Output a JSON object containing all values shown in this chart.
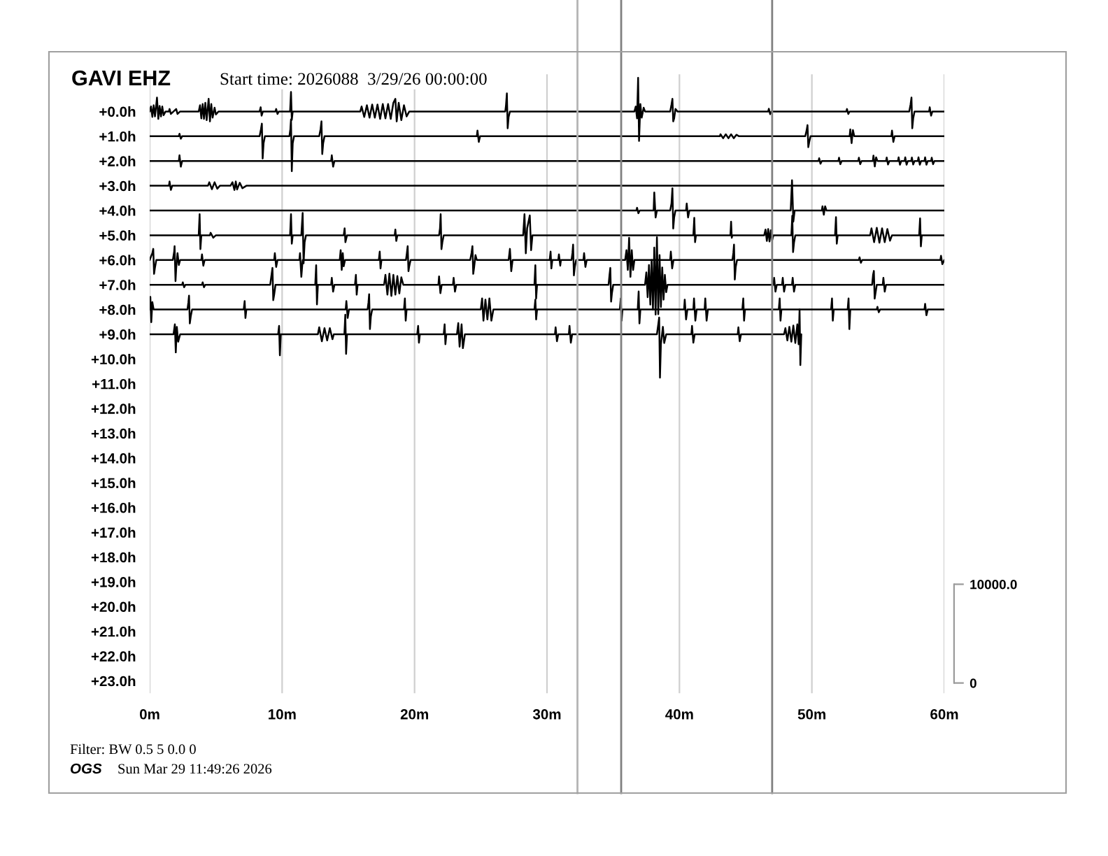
{
  "chart_data": {
    "type": "line",
    "title": "GAVI EHZ",
    "subtitle": "Start time: 2026088  3/29/26 00:00:00",
    "annotations": [
      "Filter: BW 0.5 5 0.0 0",
      "OGS",
      "Sun Mar 29 11:49:26 2026"
    ],
    "xlim": [
      0,
      60
    ],
    "xticks": [
      {
        "value": 0,
        "label": "0m"
      },
      {
        "value": 10,
        "label": "10m"
      },
      {
        "value": 20,
        "label": "20m"
      },
      {
        "value": 30,
        "label": "30m"
      },
      {
        "value": 40,
        "label": "40m"
      },
      {
        "value": 50,
        "label": "50m"
      },
      {
        "value": 60,
        "label": "60m"
      }
    ],
    "ylim": [
      23.5,
      -1.5
    ],
    "yticks": [
      {
        "value": 0,
        "label": "+0.0h"
      },
      {
        "value": 1,
        "label": "+1.0h"
      },
      {
        "value": 2,
        "label": "+2.0h"
      },
      {
        "value": 3,
        "label": "+3.0h"
      },
      {
        "value": 4,
        "label": "+4.0h"
      },
      {
        "value": 5,
        "label": "+5.0h"
      },
      {
        "value": 6,
        "label": "+6.0h"
      },
      {
        "value": 7,
        "label": "+7.0h"
      },
      {
        "value": 8,
        "label": "+8.0h"
      },
      {
        "value": 9,
        "label": "+9.0h"
      },
      {
        "value": 10,
        "label": "+10.0h"
      },
      {
        "value": 11,
        "label": "+11.0h"
      },
      {
        "value": 12,
        "label": "+12.0h"
      },
      {
        "value": 13,
        "label": "+13.0h"
      },
      {
        "value": 14,
        "label": "+14.0h"
      },
      {
        "value": 15,
        "label": "+15.0h"
      },
      {
        "value": 16,
        "label": "+16.0h"
      },
      {
        "value": 17,
        "label": "+17.0h"
      },
      {
        "value": 18,
        "label": "+18.0h"
      },
      {
        "value": 19,
        "label": "+19.0h"
      },
      {
        "value": 20,
        "label": "+20.0h"
      },
      {
        "value": 21,
        "label": "+21.0h"
      },
      {
        "value": 22,
        "label": "+22.0h"
      },
      {
        "value": 23,
        "label": "+23.0h"
      }
    ],
    "y2lim": [
      -1040,
      61640
    ],
    "y2ticks": [
      0,
      {
        "value": 10000,
        "label": "10000.0"
      }
    ],
    "grid": "x",
    "ref_lines": [
      {
        "axis": "x",
        "value": 32.3,
        "color": "#b4b4b4"
      },
      {
        "axis": "x",
        "value": 35.6,
        "color": "#808080"
      },
      {
        "axis": "x",
        "value": 47.0,
        "color": "#808080"
      }
    ],
    "series": [
      {
        "color": "#000000",
        "x": [
          0,
          0.1,
          0.2,
          0.3,
          0.4,
          0.5,
          0.55,
          0.65,
          0.75,
          0.85,
          0.95,
          1.05,
          1.2,
          1.45,
          1.5,
          1.6,
          2.0,
          2.1,
          2.3,
          3.7,
          3.8,
          3.9,
          4.0,
          4.1,
          4.2,
          4.3,
          4.45,
          4.55,
          4.65,
          4.75,
          4.9,
          5.0,
          5.2,
          8.3,
          8.38,
          8.45,
          8.55,
          9.5,
          9.55,
          9.65,
          9.75,
          10.6,
          10.67,
          10.73,
          10.8,
          15.9,
          16.0,
          16.2,
          16.4,
          16.6,
          16.8,
          17.0,
          17.2,
          17.4,
          17.6,
          17.8,
          18.0,
          18.2,
          18.4,
          18.55,
          18.65,
          18.8,
          19.0,
          19.2,
          19.4,
          19.6,
          26.85,
          26.9,
          26.97,
          27.03,
          27.1,
          27.2,
          36.6,
          36.7,
          36.8,
          36.88,
          36.95,
          37.05,
          37.15,
          37.3,
          37.4,
          39.3,
          39.4,
          39.47,
          39.53,
          39.6,
          39.7,
          39.85,
          46.7,
          46.75,
          46.85,
          46.95,
          52.6,
          52.65,
          52.75,
          52.85,
          57.35,
          57.45,
          57.52,
          57.58,
          57.65,
          57.75,
          58.85,
          58.9,
          59.0,
          59.1,
          60
        ],
        "values": [
          0,
          -0.2,
          0.22,
          -0.25,
          0.2,
          -0.3,
          -0.56,
          0.3,
          -0.22,
          0.2,
          -0.2,
          0.15,
          0,
          0,
          -0.1,
          0.1,
          -0.1,
          0.1,
          0,
          0,
          -0.25,
          0.28,
          -0.3,
          0.3,
          -0.35,
          0.35,
          -0.51,
          0.4,
          -0.3,
          0.25,
          -0.15,
          0.12,
          0,
          0,
          -0.17,
          0.17,
          0,
          0,
          -0.1,
          0.1,
          0,
          0,
          -0.79,
          0.34,
          0,
          0,
          -0.2,
          0.22,
          -0.25,
          0.25,
          -0.28,
          0.25,
          -0.28,
          0.3,
          -0.3,
          0.28,
          -0.3,
          0.3,
          -0.35,
          -0.51,
          0.4,
          -0.35,
          0.35,
          -0.25,
          0.2,
          0,
          0,
          -0.23,
          -0.73,
          0.68,
          0.23,
          0,
          0,
          -0.2,
          0.28,
          -1.36,
          1.19,
          -0.3,
          0.25,
          -0.15,
          0,
          0,
          -0.28,
          -0.51,
          0.4,
          0.28,
          -0.1,
          0,
          0,
          -0.11,
          0.11,
          0,
          0,
          -0.1,
          0.1,
          0,
          0,
          -0.28,
          -0.56,
          0.68,
          0.28,
          0,
          0,
          -0.17,
          0.17,
          0,
          0
        ]
      },
      {
        "color": "#000000",
        "x": [
          0,
          2.2,
          2.25,
          2.35,
          2.45,
          8.3,
          8.4,
          8.47,
          8.53,
          8.6,
          8.7,
          10.55,
          10.62,
          10.67,
          10.73,
          10.8,
          10.9,
          12.8,
          12.9,
          12.97,
          13.03,
          13.1,
          13.2,
          24.7,
          24.75,
          24.85,
          24.95,
          43.05,
          43.1,
          43.3,
          43.5,
          43.7,
          43.9,
          44.1,
          44.3,
          44.5,
          49.5,
          49.6,
          49.67,
          49.73,
          49.8,
          49.9,
          52.85,
          52.9,
          53.0,
          53.1,
          53.2,
          56.0,
          56.05,
          56.15,
          56.25,
          60
        ],
        "values": [
          1,
          1,
          0.9,
          1.1,
          1,
          1,
          0.72,
          0.49,
          1.9,
          1.28,
          1,
          1,
          0.72,
          0.32,
          2.41,
          1.28,
          1,
          1,
          0.72,
          0.4,
          1.72,
          1.28,
          1,
          1,
          0.77,
          1.23,
          1,
          1,
          0.92,
          1.08,
          0.92,
          1.08,
          0.92,
          1.08,
          0.94,
          1,
          1,
          0.77,
          0.55,
          1.44,
          1.23,
          1,
          1,
          0.72,
          1.28,
          0.75,
          1,
          1,
          0.77,
          1.23,
          1,
          1
        ]
      },
      {
        "color": "#000000",
        "x": [
          0,
          2.2,
          2.25,
          2.35,
          2.45,
          13.7,
          13.75,
          13.85,
          13.95,
          50.5,
          50.55,
          50.65,
          50.75,
          52.0,
          52.05,
          52.15,
          52.25,
          53.5,
          53.55,
          53.65,
          53.75,
          54.6,
          54.65,
          54.75,
          54.85,
          54.95,
          55.6,
          55.65,
          55.75,
          55.85,
          56.5,
          56.55,
          56.65,
          56.75,
          57.0,
          57.05,
          57.15,
          57.25,
          57.5,
          57.55,
          57.65,
          57.75,
          58.0,
          58.05,
          58.15,
          58.25,
          58.5,
          58.55,
          58.65,
          58.75,
          59.0,
          59.05,
          59.15,
          59.25,
          60
        ],
        "values": [
          2,
          2,
          1.77,
          2.23,
          2,
          2,
          1.77,
          2.23,
          2,
          2,
          1.89,
          2.11,
          2,
          2,
          1.87,
          2.13,
          2,
          2,
          1.87,
          2.13,
          2,
          2,
          1.78,
          2.22,
          1.85,
          2,
          2,
          1.86,
          2.14,
          2,
          2,
          1.85,
          2.15,
          2,
          2,
          1.85,
          2.15,
          2,
          2,
          1.86,
          2.14,
          2,
          2,
          1.85,
          2.15,
          2,
          2,
          1.85,
          2.15,
          2,
          2,
          1.87,
          2.13,
          2,
          2
        ]
      },
      {
        "color": "#000000",
        "x": [
          0,
          1.45,
          1.5,
          1.6,
          1.7,
          4.4,
          4.5,
          4.7,
          4.9,
          5.1,
          5.3,
          6.1,
          6.25,
          6.4,
          6.5,
          6.6,
          6.8,
          7.0,
          7.3,
          60
        ],
        "values": [
          3,
          3,
          2.83,
          3.17,
          3,
          3,
          2.86,
          3.14,
          2.86,
          3.12,
          3,
          3,
          2.86,
          3.17,
          2.83,
          3.15,
          2.88,
          3.1,
          3,
          3
        ]
      },
      {
        "color": "#000000",
        "x": [
          0,
          36.75,
          36.8,
          36.9,
          37.0,
          38.05,
          38.1,
          38.2,
          38.3,
          39.3,
          39.4,
          39.47,
          39.53,
          39.6,
          39.7,
          40.5,
          40.55,
          40.65,
          40.75,
          48.4,
          48.5,
          48.6,
          48.7,
          50.75,
          50.8,
          50.9,
          51.0,
          51.1,
          60
        ],
        "values": [
          4,
          4,
          3.89,
          4.11,
          4,
          4,
          3.27,
          4.28,
          4,
          4,
          3.72,
          3.1,
          4.73,
          4.28,
          4,
          4,
          3.72,
          4.28,
          4,
          4,
          2.78,
          4.45,
          4,
          4,
          3.83,
          4.17,
          3.83,
          4,
          4
        ]
      },
      {
        "color": "#000000",
        "x": [
          0,
          3.7,
          3.77,
          3.83,
          3.9,
          4.55,
          4.6,
          4.8,
          5.0,
          10.6,
          10.67,
          10.73,
          10.8,
          11.45,
          11.55,
          11.62,
          11.7,
          11.8,
          14.65,
          14.72,
          14.78,
          14.9,
          18.5,
          18.55,
          18.62,
          18.7,
          21.85,
          21.92,
          21.97,
          22.03,
          22.1,
          22.2,
          28.2,
          28.3,
          28.4,
          28.5,
          28.7,
          28.8,
          28.9,
          41.05,
          41.12,
          41.18,
          41.25,
          43.85,
          43.9,
          43.95,
          44.0,
          46.4,
          46.5,
          46.6,
          46.7,
          46.8,
          46.9,
          47.0,
          47.1,
          48.45,
          48.52,
          48.58,
          48.65,
          48.75,
          51.75,
          51.82,
          51.88,
          51.95,
          54.4,
          54.5,
          54.7,
          54.9,
          55.1,
          55.3,
          55.5,
          55.7,
          55.9,
          56.05,
          58.1,
          58.17,
          58.23,
          58.3,
          60
        ],
        "values": [
          5,
          5,
          4.15,
          5.56,
          5,
          5,
          4.9,
          5.1,
          5,
          5,
          4.15,
          5.34,
          5,
          5,
          4.1,
          6.13,
          5.28,
          5,
          5,
          4.72,
          5.28,
          5,
          5,
          4.77,
          5.23,
          5,
          5,
          4.72,
          4.15,
          5.56,
          5.28,
          5,
          5,
          4.15,
          5.73,
          4.72,
          4.2,
          5.6,
          5,
          5,
          4.3,
          5.28,
          5,
          5,
          4.45,
          5.1,
          5,
          5,
          4.77,
          5.23,
          4.75,
          5.25,
          4.8,
          5.2,
          5,
          5,
          4.21,
          5.68,
          5.3,
          5,
          5,
          4.27,
          5.34,
          5,
          5,
          4.72,
          5.28,
          4.7,
          5.3,
          4.72,
          5.28,
          4.75,
          5.22,
          5,
          5,
          4.32,
          5.45,
          5,
          5
        ]
      },
      {
        "color": "#000000",
        "x": [
          0,
          0.2,
          0.27,
          0.33,
          0.4,
          0.5,
          1.75,
          1.85,
          1.88,
          1.95,
          2.0,
          2.1,
          2.2,
          2.3,
          3.9,
          3.95,
          4.05,
          4.15,
          9.4,
          9.45,
          9.55,
          9.65,
          11.3,
          11.35,
          11.45,
          11.55,
          14.35,
          14.42,
          14.5,
          14.58,
          14.65,
          14.75,
          17.3,
          17.37,
          17.43,
          17.5,
          19.35,
          19.42,
          19.48,
          19.54,
          19.6,
          19.7,
          24.2,
          24.3,
          24.37,
          24.43,
          24.5,
          24.6,
          24.7,
          27.1,
          27.2,
          27.3,
          27.4,
          30.2,
          30.27,
          30.33,
          30.4,
          30.85,
          30.9,
          31.0,
          31.05,
          31.85,
          31.92,
          31.97,
          32.03,
          32.1,
          32.2,
          32.75,
          32.8,
          32.9,
          33.0,
          35.9,
          36.0,
          36.1,
          36.2,
          36.3,
          36.4,
          36.5,
          36.6,
          39.3,
          39.35,
          39.45,
          39.55,
          44.0,
          44.07,
          44.12,
          44.18,
          44.25,
          44.35,
          53.55,
          53.6,
          53.7,
          53.8,
          59.7,
          59.75,
          59.85,
          60
        ],
        "values": [
          6,
          5.72,
          5.55,
          6.56,
          6.3,
          6,
          6,
          5.66,
          5.44,
          6.85,
          6.34,
          5.72,
          6.2,
          6,
          6,
          5.77,
          6.23,
          6,
          6,
          5.72,
          6.28,
          6,
          6,
          5.72,
          6.68,
          6,
          6,
          5.6,
          6.4,
          5.72,
          6.25,
          6,
          6,
          5.66,
          6.34,
          6,
          6,
          5.72,
          5.44,
          6.45,
          6.25,
          6,
          6,
          5.72,
          5.44,
          6.56,
          6.28,
          5.8,
          6,
          6,
          5.55,
          6.45,
          6,
          6,
          5.66,
          6.34,
          6,
          6,
          5.77,
          6.23,
          6,
          6,
          5.72,
          5.38,
          6.62,
          6.28,
          6,
          6,
          5.72,
          6.28,
          6,
          6,
          5.6,
          6.4,
          5.1,
          6.68,
          5.6,
          6.4,
          6,
          6,
          5.66,
          6.34,
          6,
          6,
          5.72,
          5.38,
          6.79,
          6.28,
          6,
          6,
          5.89,
          6.11,
          6,
          6,
          5.83,
          6.17,
          6
        ]
      },
      {
        "color": "#000000",
        "x": [
          0,
          2.45,
          2.5,
          2.6,
          2.7,
          3.95,
          4.0,
          4.1,
          4.2,
          9.1,
          9.2,
          9.27,
          9.33,
          9.4,
          9.5,
          12.5,
          12.57,
          12.63,
          12.7,
          13.7,
          13.75,
          13.85,
          13.95,
          15.5,
          15.57,
          15.63,
          15.7,
          17.7,
          17.8,
          17.95,
          18.1,
          18.25,
          18.4,
          18.55,
          18.7,
          18.85,
          19.0,
          19.15,
          21.8,
          21.85,
          21.95,
          22.05,
          22.9,
          22.95,
          23.05,
          23.15,
          29.05,
          29.12,
          29.18,
          29.25,
          34.65,
          34.72,
          34.78,
          34.84,
          34.9,
          35.0,
          37.4,
          37.5,
          37.6,
          37.7,
          37.8,
          37.9,
          38.0,
          38.1,
          38.2,
          38.3,
          38.4,
          38.5,
          38.6,
          38.7,
          38.8,
          38.9,
          39.0,
          39.1,
          47.1,
          47.15,
          47.25,
          47.35,
          47.75,
          47.8,
          47.9,
          48.0,
          48.5,
          48.55,
          48.65,
          48.75,
          54.55,
          54.62,
          54.68,
          54.74,
          54.8,
          54.9,
          55.35,
          55.4,
          55.5,
          55.6,
          60
        ],
        "values": [
          7,
          7,
          6.9,
          7.1,
          7,
          7,
          6.9,
          7.1,
          7,
          7,
          6.6,
          6.32,
          7.62,
          7.4,
          7,
          7,
          6.21,
          7.79,
          7,
          7,
          6.72,
          7.28,
          7,
          7,
          6.6,
          7.4,
          7,
          7,
          6.6,
          7.4,
          6.55,
          7.45,
          6.6,
          7.4,
          6.65,
          7.35,
          6.7,
          7,
          7,
          6.66,
          7.34,
          7,
          7,
          6.72,
          7.28,
          7,
          7,
          6.21,
          7.56,
          7,
          7,
          6.6,
          6.32,
          7.68,
          7.35,
          7,
          7,
          6.5,
          7.5,
          6.2,
          7.8,
          6.0,
          8.0,
          5.5,
          8.2,
          5.08,
          8.19,
          5.8,
          7.9,
          6.3,
          7.6,
          6.6,
          7.3,
          7,
          7,
          6.72,
          7.28,
          7,
          7,
          6.72,
          7.28,
          7,
          7,
          6.72,
          7.28,
          7,
          7,
          6.6,
          6.44,
          7.56,
          7.35,
          7,
          7,
          6.72,
          7.28,
          7,
          7
        ]
      },
      {
        "color": "#000000",
        "x": [
          0,
          0.05,
          0.12,
          0.2,
          0.3,
          2.85,
          2.92,
          2.97,
          3.03,
          3.1,
          3.2,
          7.1,
          7.17,
          7.23,
          7.3,
          14.8,
          14.85,
          14.95,
          15.05,
          16.45,
          16.52,
          16.57,
          16.63,
          16.7,
          16.8,
          19.2,
          19.27,
          19.33,
          19.4,
          25.0,
          25.1,
          25.2,
          25.35,
          25.5,
          25.65,
          25.8,
          25.95,
          29.05,
          29.12,
          29.18,
          29.25,
          35.5,
          35.57,
          35.63,
          35.7,
          36.85,
          36.92,
          36.98,
          37.05,
          40.35,
          40.4,
          40.5,
          40.6,
          41.05,
          41.1,
          41.2,
          41.3,
          41.9,
          41.95,
          42.05,
          42.15,
          44.75,
          44.82,
          44.88,
          44.95,
          47.5,
          47.57,
          47.63,
          47.7,
          51.45,
          51.52,
          51.58,
          51.65,
          52.7,
          52.77,
          52.83,
          52.9,
          54.9,
          54.95,
          55.05,
          55.15,
          58.5,
          58.55,
          58.65,
          58.75,
          60
        ],
        "values": [
          8,
          7.49,
          8.51,
          7.7,
          8,
          8,
          7.72,
          7.44,
          8.56,
          8.28,
          8,
          8,
          7.66,
          8.34,
          8,
          8,
          7.66,
          8.34,
          8,
          8,
          7.72,
          7.38,
          8.79,
          8.28,
          8,
          8,
          7.55,
          8.45,
          8,
          8,
          7.55,
          8.45,
          7.6,
          8.4,
          7.55,
          8.45,
          8,
          8,
          7.6,
          8.4,
          8,
          8,
          7.55,
          8.45,
          8,
          8,
          7.27,
          8.56,
          8,
          8,
          7.6,
          8.4,
          8,
          8,
          7.55,
          8.45,
          8,
          8,
          7.55,
          8.45,
          8,
          8,
          7.55,
          8.45,
          8,
          8,
          7.55,
          8.45,
          8,
          8,
          7.55,
          8.45,
          8,
          8,
          7.55,
          8.79,
          8,
          8,
          7.89,
          8.11,
          8,
          8,
          7.77,
          8.23,
          8,
          8
        ]
      },
      {
        "color": "#000000",
        "x": [
          0,
          1.8,
          1.9,
          1.97,
          2.05,
          2.15,
          2.3,
          9.7,
          9.77,
          9.83,
          9.9,
          12.7,
          12.8,
          13.0,
          13.2,
          13.4,
          13.6,
          13.8,
          13.9,
          14.7,
          14.77,
          14.83,
          14.9,
          20.2,
          20.27,
          20.33,
          20.4,
          22.2,
          22.27,
          22.33,
          22.4,
          23.2,
          23.3,
          23.4,
          23.55,
          23.65,
          23.8,
          30.6,
          30.65,
          30.75,
          30.85,
          31.65,
          31.7,
          31.8,
          31.9,
          38.3,
          38.4,
          38.47,
          38.53,
          38.6,
          38.75,
          38.85,
          39.0,
          40.9,
          40.95,
          41.05,
          41.15,
          44.4,
          44.45,
          44.55,
          44.65,
          47.9,
          48.0,
          48.15,
          48.3,
          48.45,
          48.6,
          48.75,
          48.9,
          49.0,
          49.07,
          49.13,
          49.2
        ],
        "values": [
          9,
          9,
          8.6,
          9.73,
          8.7,
          9.3,
          9,
          9,
          8.66,
          9.85,
          9,
          9,
          8.72,
          9.28,
          8.75,
          9.25,
          8.75,
          9.2,
          9,
          9,
          8.21,
          9.79,
          9,
          9,
          8.66,
          9.34,
          9,
          9,
          8.6,
          9.4,
          9,
          9,
          8.55,
          9.5,
          8.6,
          9.56,
          9,
          9,
          8.72,
          9.28,
          9,
          9,
          8.66,
          9.34,
          9,
          9,
          8.6,
          8.32,
          10.75,
          9.4,
          8.7,
          9.35,
          9,
          9,
          8.66,
          9.34,
          9,
          9,
          8.72,
          9.28,
          9,
          9,
          8.75,
          9.25,
          8.7,
          9.3,
          8.65,
          9.35,
          8.6,
          9.4,
          8.0,
          10.24,
          9
        ]
      }
    ]
  }
}
